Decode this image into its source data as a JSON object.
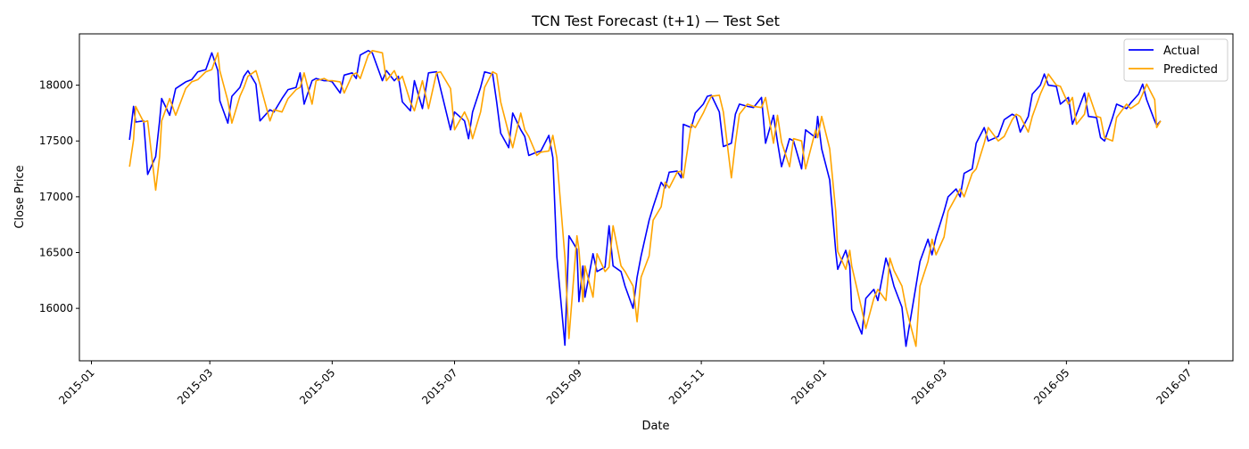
{
  "chart_data": {
    "type": "line",
    "title": "TCN Test Forecast (t+1) — Test Set",
    "xlabel": "Date",
    "ylabel": "Close Price",
    "xlim": [
      "2014-12-26",
      "2016-07-23"
    ],
    "ylim": [
      15530,
      18460
    ],
    "yticks": [
      16000,
      16500,
      17000,
      17500,
      18000
    ],
    "xticks": [
      "2015-01",
      "2015-03",
      "2015-05",
      "2015-07",
      "2015-09",
      "2015-11",
      "2016-01",
      "2016-03",
      "2016-05",
      "2016-07"
    ],
    "grid": false,
    "legend_position": "upper-right",
    "x": [
      "2015-01-20",
      "2015-01-22",
      "2015-01-23",
      "2015-01-27",
      "2015-01-29",
      "2015-02-02",
      "2015-02-04",
      "2015-02-05",
      "2015-02-09",
      "2015-02-12",
      "2015-02-17",
      "2015-02-20",
      "2015-02-23",
      "2015-02-27",
      "2015-03-02",
      "2015-03-05",
      "2015-03-06",
      "2015-03-10",
      "2015-03-12",
      "2015-03-16",
      "2015-03-18",
      "2015-03-20",
      "2015-03-24",
      "2015-03-26",
      "2015-03-31",
      "2015-04-02",
      "2015-04-06",
      "2015-04-09",
      "2015-04-13",
      "2015-04-15",
      "2015-04-17",
      "2015-04-21",
      "2015-04-23",
      "2015-04-27",
      "2015-04-29",
      "2015-05-01",
      "2015-05-05",
      "2015-05-07",
      "2015-05-11",
      "2015-05-13",
      "2015-05-15",
      "2015-05-19",
      "2015-05-21",
      "2015-05-26",
      "2015-05-28",
      "2015-06-01",
      "2015-06-03",
      "2015-06-05",
      "2015-06-09",
      "2015-06-11",
      "2015-06-15",
      "2015-06-18",
      "2015-06-22",
      "2015-06-24",
      "2015-06-29",
      "2015-07-01",
      "2015-07-06",
      "2015-07-08",
      "2015-07-10",
      "2015-07-14",
      "2015-07-16",
      "2015-07-20",
      "2015-07-22",
      "2015-07-24",
      "2015-07-28",
      "2015-07-30",
      "2015-08-03",
      "2015-08-05",
      "2015-08-07",
      "2015-08-11",
      "2015-08-13",
      "2015-08-17",
      "2015-08-19",
      "2015-08-21",
      "2015-08-25",
      "2015-08-27",
      "2015-08-31",
      "2015-09-01",
      "2015-09-03",
      "2015-09-04",
      "2015-09-08",
      "2015-09-10",
      "2015-09-14",
      "2015-09-16",
      "2015-09-18",
      "2015-09-22",
      "2015-09-24",
      "2015-09-28",
      "2015-09-30",
      "2015-10-02",
      "2015-10-06",
      "2015-10-08",
      "2015-10-12",
      "2015-10-14",
      "2015-10-16",
      "2015-10-20",
      "2015-10-22",
      "2015-10-23",
      "2015-10-27",
      "2015-10-29",
      "2015-11-02",
      "2015-11-04",
      "2015-11-06",
      "2015-11-10",
      "2015-11-12",
      "2015-11-16",
      "2015-11-18",
      "2015-11-20",
      "2015-11-24",
      "2015-11-27",
      "2015-12-01",
      "2015-12-03",
      "2015-12-07",
      "2015-12-09",
      "2015-12-11",
      "2015-12-15",
      "2015-12-17",
      "2015-12-21",
      "2015-12-23",
      "2015-12-28",
      "2015-12-29",
      "2015-12-31",
      "2016-01-04",
      "2016-01-07",
      "2016-01-08",
      "2016-01-12",
      "2016-01-14",
      "2016-01-15",
      "2016-01-20",
      "2016-01-22",
      "2016-01-26",
      "2016-01-28",
      "2016-02-01",
      "2016-02-03",
      "2016-02-05",
      "2016-02-09",
      "2016-02-11",
      "2016-02-16",
      "2016-02-18",
      "2016-02-22",
      "2016-02-24",
      "2016-02-26",
      "2016-03-01",
      "2016-03-03",
      "2016-03-07",
      "2016-03-09",
      "2016-03-11",
      "2016-03-15",
      "2016-03-17",
      "2016-03-21",
      "2016-03-23",
      "2016-03-28",
      "2016-03-31",
      "2016-04-04",
      "2016-04-06",
      "2016-04-08",
      "2016-04-12",
      "2016-04-14",
      "2016-04-18",
      "2016-04-20",
      "2016-04-22",
      "2016-04-26",
      "2016-04-28",
      "2016-05-02",
      "2016-05-04",
      "2016-05-06",
      "2016-05-10",
      "2016-05-12",
      "2016-05-16",
      "2016-05-18",
      "2016-05-20",
      "2016-05-24",
      "2016-05-26",
      "2016-05-31",
      "2016-06-02",
      "2016-06-06",
      "2016-06-08",
      "2016-06-10",
      "2016-06-14",
      "2016-06-15",
      "2016-06-17"
    ],
    "series": [
      {
        "name": "Actual",
        "color": "#0000ff",
        "values": [
          17510,
          17810,
          17670,
          17680,
          17200,
          17360,
          17680,
          17880,
          17730,
          17970,
          18030,
          18050,
          18120,
          18140,
          18290,
          18130,
          17860,
          17660,
          17900,
          17980,
          18080,
          18130,
          18010,
          17680,
          17780,
          17760,
          17880,
          17960,
          17980,
          18110,
          17830,
          18040,
          18060,
          18040,
          18040,
          18030,
          17930,
          18090,
          18110,
          18060,
          18270,
          18310,
          18290,
          18040,
          18130,
          18040,
          18080,
          17850,
          17770,
          18040,
          17790,
          18110,
          18120,
          17970,
          17600,
          17760,
          17680,
          17520,
          17760,
          17980,
          18120,
          18100,
          17850,
          17570,
          17440,
          17750,
          17600,
          17540,
          17370,
          17400,
          17410,
          17550,
          17350,
          16460,
          15670,
          16650,
          16530,
          16060,
          16380,
          16100,
          16490,
          16330,
          16370,
          16740,
          16380,
          16330,
          16200,
          16000,
          16280,
          16470,
          16790,
          16910,
          17130,
          17080,
          17220,
          17230,
          17170,
          17650,
          17620,
          17750,
          17830,
          17900,
          17910,
          17760,
          17450,
          17480,
          17740,
          17830,
          17810,
          17800,
          17890,
          17480,
          17730,
          17490,
          17270,
          17520,
          17500,
          17250,
          17600,
          17530,
          17720,
          17430,
          17150,
          16510,
          16350,
          16520,
          16380,
          15990,
          15770,
          16090,
          16170,
          16070,
          16450,
          16340,
          16200,
          16010,
          15660,
          16200,
          16420,
          16620,
          16480,
          16640,
          16870,
          17000,
          17070,
          17000,
          17210,
          17250,
          17480,
          17620,
          17500,
          17540,
          17690,
          17740,
          17720,
          17580,
          17720,
          17920,
          18000,
          18100,
          18000,
          17990,
          17830,
          17890,
          17650,
          17740,
          17930,
          17720,
          17710,
          17530,
          17500,
          17710,
          17830,
          17790,
          17840,
          17920,
          18010,
          17870,
          17680,
          17640,
          17680
        ]
      },
      {
        "name": "Predicted",
        "color": "#ffa500",
        "values": [
          17270,
          17510,
          17810,
          17670,
          17680,
          17060,
          17360,
          17680,
          17880,
          17730,
          17970,
          18030,
          18050,
          18120,
          18140,
          18290,
          18130,
          17860,
          17660,
          17900,
          17980,
          18080,
          18130,
          18010,
          17680,
          17780,
          17760,
          17880,
          17960,
          17980,
          18110,
          17830,
          18040,
          18060,
          18040,
          18040,
          18030,
          17930,
          18090,
          18110,
          18060,
          18270,
          18310,
          18290,
          18040,
          18130,
          18040,
          18080,
          17850,
          17770,
          18040,
          17790,
          18110,
          18120,
          17970,
          17600,
          17760,
          17680,
          17520,
          17760,
          17980,
          18120,
          18100,
          17850,
          17570,
          17440,
          17750,
          17600,
          17540,
          17370,
          17400,
          17410,
          17550,
          17350,
          16460,
          15730,
          16650,
          16530,
          16060,
          16380,
          16100,
          16490,
          16330,
          16370,
          16740,
          16380,
          16330,
          16200,
          15880,
          16280,
          16470,
          16790,
          16910,
          17130,
          17080,
          17220,
          17230,
          17170,
          17650,
          17620,
          17750,
          17830,
          17900,
          17910,
          17760,
          17170,
          17480,
          17740,
          17830,
          17810,
          17800,
          17890,
          17480,
          17730,
          17490,
          17270,
          17520,
          17500,
          17250,
          17600,
          17530,
          17720,
          17430,
          16870,
          16510,
          16350,
          16520,
          16380,
          15990,
          15820,
          16090,
          16170,
          16070,
          16450,
          16340,
          16200,
          16010,
          15660,
          16200,
          16420,
          16620,
          16480,
          16640,
          16870,
          17000,
          17070,
          17000,
          17210,
          17250,
          17480,
          17620,
          17500,
          17540,
          17690,
          17740,
          17720,
          17580,
          17720,
          17920,
          18000,
          18100,
          18000,
          17990,
          17830,
          17890,
          17650,
          17740,
          17930,
          17720,
          17710,
          17530,
          17500,
          17710,
          17830,
          17790,
          17840,
          17920,
          18010,
          17870,
          17620,
          17680
        ]
      }
    ]
  }
}
